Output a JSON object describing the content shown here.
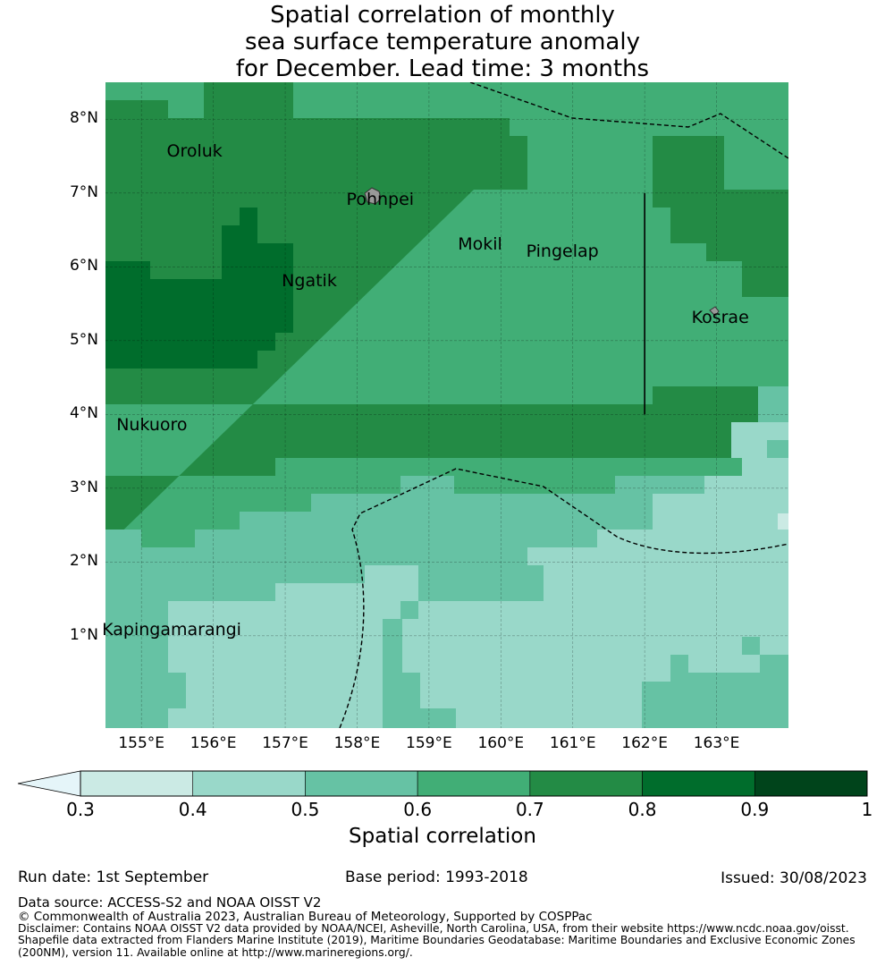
{
  "title": {
    "line1": "Spatial correlation of monthly",
    "line2": "sea surface temperature anomaly",
    "line3": "for December. Lead time: 3 months"
  },
  "map": {
    "lat_labels": [
      "8°N",
      "7°N",
      "6°N",
      "5°N",
      "4°N",
      "3°N",
      "2°N",
      "1°N"
    ],
    "lon_labels": [
      "155°E",
      "156°E",
      "157°E",
      "158°E",
      "159°E",
      "160°E",
      "161°E",
      "162°E",
      "163°E"
    ],
    "lon_range": [
      154.5,
      164.0
    ],
    "lat_range": [
      -0.25,
      8.5
    ],
    "places": [
      {
        "name": "Oroluk",
        "lon": 155.7,
        "lat": 7.55
      },
      {
        "name": "Pohnpei",
        "lon": 158.2,
        "lat": 6.9
      },
      {
        "name": "Mokil",
        "lon": 159.75,
        "lat": 6.3
      },
      {
        "name": "Pingelap",
        "lon": 160.7,
        "lat": 6.2
      },
      {
        "name": "Ngatik",
        "lon": 157.3,
        "lat": 5.8
      },
      {
        "name": "Kosrae",
        "lon": 163.0,
        "lat": 5.3
      },
      {
        "name": "Nukuoro",
        "lon": 155.0,
        "lat": 3.85
      },
      {
        "name": "Kapingamarangi",
        "lon": 154.8,
        "lat": 1.07
      }
    ],
    "colors": {
      "c03": "#cbeae4",
      "c04": "#99d8c9",
      "c05": "#66c2a4",
      "c06": "#41ae76",
      "c07": "#238b45",
      "c08": "#006d2c",
      "c09": "#00441b",
      "under": "#e5f5f9"
    }
  },
  "colorbar": {
    "ticks": [
      "0.3",
      "0.4",
      "0.5",
      "0.6",
      "0.7",
      "0.8",
      "0.9",
      "1"
    ],
    "label": "Spatial correlation"
  },
  "footer": {
    "run_date": "Run date: 1st September",
    "base_period": "Base period: 1993-2018",
    "issued": "Issued: 30/08/2023",
    "data_source": "Data source: ACCESS-S2 and NOAA OISST V2",
    "copyright": "© Commonwealth of Australia 2023, Australian Bureau of Meteorology, Supported by COSPPac",
    "disclaimer1": "Disclaimer: Contains NOAA OISST V2 data provided by NOAA/NCEI, Asheville, North Carolina, USA, from their website https://www.ncdc.noaa.gov/oisst.",
    "disclaimer2": "Shapefile data extracted from Flanders Marine Institute (2019), Maritime Boundaries Geodatabase: Maritime Boundaries and Exclusive Economic Zones",
    "disclaimer3": "(200NM), version 11. Available online at http://www.marineregions.org/."
  }
}
